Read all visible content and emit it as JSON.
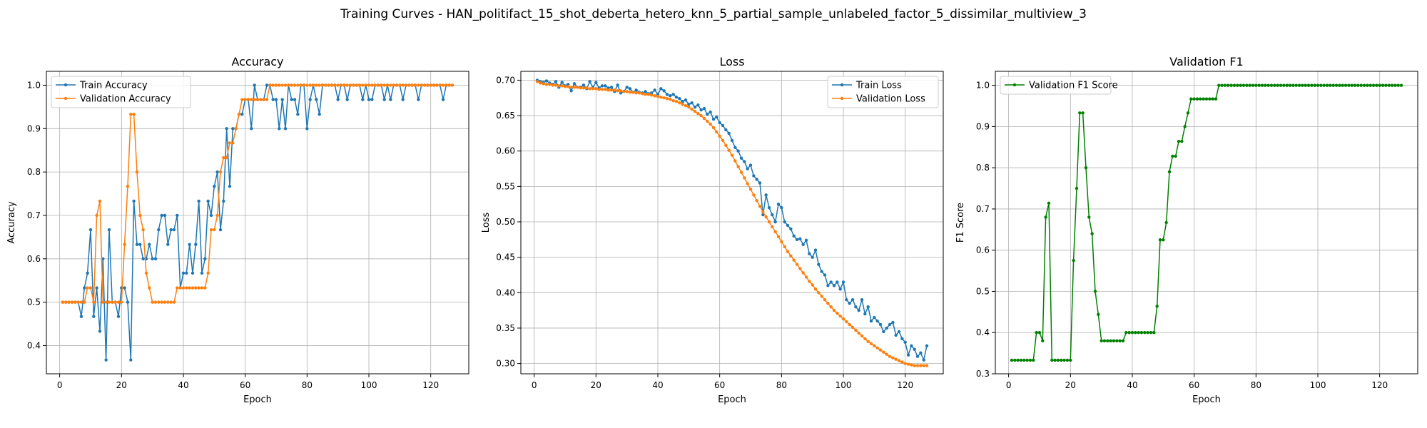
{
  "figure": {
    "suptitle": "Training Curves - HAN_politifact_15_shot_deberta_hetero_knn_5_partial_sample_unlabeled_factor_5_dissimilar_multiview_3"
  },
  "colors": {
    "train": "#1f77b4",
    "validation": "#ff7f0e",
    "f1": "#008000",
    "grid": "#b0b0b0",
    "axis": "#000000"
  },
  "chart_data": [
    {
      "type": "line",
      "title": "Accuracy",
      "xlabel": "Epoch",
      "ylabel": "Accuracy",
      "xlim": [
        -4.3,
        132.3
      ],
      "ylim": [
        0.335,
        1.032
      ],
      "xticks": [
        0,
        20,
        40,
        60,
        80,
        100,
        120
      ],
      "yticks": [
        0.4,
        0.5,
        0.6,
        0.7,
        0.8,
        0.9,
        1.0
      ],
      "ytick_labels": [
        "0.4",
        "0.5",
        "0.6",
        "0.7",
        "0.8",
        "0.9",
        "1.0"
      ],
      "grid": true,
      "legend_position": "upper-left",
      "x": [
        1,
        2,
        3,
        4,
        5,
        6,
        7,
        8,
        9,
        10,
        11,
        12,
        13,
        14,
        15,
        16,
        17,
        18,
        19,
        20,
        21,
        22,
        23,
        24,
        25,
        26,
        27,
        28,
        29,
        30,
        31,
        32,
        33,
        34,
        35,
        36,
        37,
        38,
        39,
        40,
        41,
        42,
        43,
        44,
        45,
        46,
        47,
        48,
        49,
        50,
        51,
        52,
        53,
        54,
        55,
        56,
        57,
        58,
        59,
        60,
        61,
        62,
        63,
        64,
        65,
        66,
        67,
        68,
        69,
        70,
        71,
        72,
        73,
        74,
        75,
        76,
        77,
        78,
        79,
        80,
        81,
        82,
        83,
        84,
        85,
        86,
        87,
        88,
        89,
        90,
        91,
        92,
        93,
        94,
        95,
        96,
        97,
        98,
        99,
        100,
        101,
        102,
        103,
        104,
        105,
        106,
        107,
        108,
        109,
        110,
        111,
        112,
        113,
        114,
        115,
        116,
        117,
        118,
        119,
        120,
        121,
        122,
        123,
        124,
        125,
        126,
        127
      ],
      "series": [
        {
          "name": "Train Accuracy",
          "color_key": "train",
          "values": [
            0.5,
            0.5,
            0.5,
            0.5,
            0.5,
            0.5,
            0.467,
            0.533,
            0.567,
            0.667,
            0.467,
            0.533,
            0.433,
            0.6,
            0.367,
            0.667,
            0.5,
            0.5,
            0.467,
            0.533,
            0.533,
            0.5,
            0.367,
            0.733,
            0.633,
            0.633,
            0.6,
            0.6,
            0.633,
            0.6,
            0.6,
            0.667,
            0.7,
            0.7,
            0.633,
            0.667,
            0.667,
            0.7,
            0.533,
            0.567,
            0.567,
            0.633,
            0.567,
            0.633,
            0.733,
            0.567,
            0.6,
            0.733,
            0.7,
            0.767,
            0.8,
            0.667,
            0.733,
            0.9,
            0.767,
            0.9,
            0.9,
            0.933,
            0.933,
            0.967,
            0.967,
            0.9,
            1.0,
            0.967,
            0.967,
            0.967,
            1.0,
            1.0,
            0.967,
            0.967,
            0.9,
            0.967,
            0.9,
            1.0,
            0.967,
            0.967,
            0.933,
            1.0,
            1.0,
            0.9,
            0.967,
            1.0,
            0.967,
            0.933,
            1.0,
            1.0,
            1.0,
            1.0,
            1.0,
            0.967,
            1.0,
            1.0,
            0.967,
            1.0,
            1.0,
            1.0,
            1.0,
            0.967,
            1.0,
            0.967,
            0.967,
            1.0,
            1.0,
            1.0,
            0.967,
            1.0,
            0.967,
            1.0,
            1.0,
            1.0,
            0.967,
            1.0,
            1.0,
            1.0,
            1.0,
            0.967,
            1.0,
            1.0,
            1.0,
            1.0,
            1.0,
            1.0,
            1.0,
            0.967,
            1.0,
            1.0,
            1.0
          ]
        },
        {
          "name": "Validation Accuracy",
          "color_key": "validation",
          "values": [
            0.5,
            0.5,
            0.5,
            0.5,
            0.5,
            0.5,
            0.5,
            0.5,
            0.533,
            0.533,
            0.5,
            0.7,
            0.733,
            0.5,
            0.5,
            0.5,
            0.5,
            0.5,
            0.5,
            0.5,
            0.633,
            0.767,
            0.933,
            0.933,
            0.8,
            0.7,
            0.667,
            0.567,
            0.533,
            0.5,
            0.5,
            0.5,
            0.5,
            0.5,
            0.5,
            0.5,
            0.5,
            0.533,
            0.533,
            0.533,
            0.533,
            0.533,
            0.533,
            0.533,
            0.533,
            0.533,
            0.533,
            0.567,
            0.667,
            0.667,
            0.7,
            0.8,
            0.833,
            0.833,
            0.867,
            0.867,
            0.9,
            0.933,
            0.967,
            0.967,
            0.967,
            0.967,
            0.967,
            0.967,
            0.967,
            0.967,
            0.967,
            1.0,
            1.0,
            1.0,
            1.0,
            1.0,
            1.0,
            1.0,
            1.0,
            1.0,
            1.0,
            1.0,
            1.0,
            1.0,
            1.0,
            1.0,
            1.0,
            1.0,
            1.0,
            1.0,
            1.0,
            1.0,
            1.0,
            1.0,
            1.0,
            1.0,
            1.0,
            1.0,
            1.0,
            1.0,
            1.0,
            1.0,
            1.0,
            1.0,
            1.0,
            1.0,
            1.0,
            1.0,
            1.0,
            1.0,
            1.0,
            1.0,
            1.0,
            1.0,
            1.0,
            1.0,
            1.0,
            1.0,
            1.0,
            1.0,
            1.0,
            1.0,
            1.0,
            1.0,
            1.0,
            1.0,
            1.0,
            1.0,
            1.0,
            1.0,
            1.0
          ]
        }
      ]
    },
    {
      "type": "line",
      "title": "Loss",
      "xlabel": "Epoch",
      "ylabel": "Loss",
      "xlim": [
        -4.3,
        132.3
      ],
      "ylim": [
        0.2855,
        0.7125
      ],
      "xticks": [
        0,
        20,
        40,
        60,
        80,
        100,
        120
      ],
      "yticks": [
        0.3,
        0.35,
        0.4,
        0.45,
        0.5,
        0.55,
        0.6,
        0.65,
        0.7
      ],
      "ytick_labels": [
        "0.30",
        "0.35",
        "0.40",
        "0.45",
        "0.50",
        "0.55",
        "0.60",
        "0.65",
        "0.70"
      ],
      "grid": true,
      "legend_position": "upper-right",
      "x": [
        1,
        2,
        3,
        4,
        5,
        6,
        7,
        8,
        9,
        10,
        11,
        12,
        13,
        14,
        15,
        16,
        17,
        18,
        19,
        20,
        21,
        22,
        23,
        24,
        25,
        26,
        27,
        28,
        29,
        30,
        31,
        32,
        33,
        34,
        35,
        36,
        37,
        38,
        39,
        40,
        41,
        42,
        43,
        44,
        45,
        46,
        47,
        48,
        49,
        50,
        51,
        52,
        53,
        54,
        55,
        56,
        57,
        58,
        59,
        60,
        61,
        62,
        63,
        64,
        65,
        66,
        67,
        68,
        69,
        70,
        71,
        72,
        73,
        74,
        75,
        76,
        77,
        78,
        79,
        80,
        81,
        82,
        83,
        84,
        85,
        86,
        87,
        88,
        89,
        90,
        91,
        92,
        93,
        94,
        95,
        96,
        97,
        98,
        99,
        100,
        101,
        102,
        103,
        104,
        105,
        106,
        107,
        108,
        109,
        110,
        111,
        112,
        113,
        114,
        115,
        116,
        117,
        118,
        119,
        120,
        121,
        122,
        123,
        124,
        125,
        126,
        127
      ],
      "series": [
        {
          "name": "Train Loss",
          "color_key": "train",
          "values": [
            0.7,
            0.698,
            0.697,
            0.699,
            0.696,
            0.694,
            0.698,
            0.69,
            0.697,
            0.692,
            0.694,
            0.685,
            0.695,
            0.69,
            0.69,
            0.693,
            0.688,
            0.698,
            0.69,
            0.697,
            0.689,
            0.692,
            0.692,
            0.689,
            0.69,
            0.684,
            0.693,
            0.682,
            0.684,
            0.69,
            0.688,
            0.683,
            0.686,
            0.683,
            0.682,
            0.684,
            0.681,
            0.682,
            0.686,
            0.68,
            0.688,
            0.685,
            0.68,
            0.678,
            0.68,
            0.676,
            0.674,
            0.67,
            0.672,
            0.666,
            0.668,
            0.662,
            0.665,
            0.658,
            0.66,
            0.652,
            0.655,
            0.645,
            0.648,
            0.64,
            0.636,
            0.63,
            0.625,
            0.615,
            0.605,
            0.6,
            0.59,
            0.585,
            0.575,
            0.58,
            0.565,
            0.56,
            0.555,
            0.51,
            0.538,
            0.52,
            0.51,
            0.5,
            0.525,
            0.52,
            0.5,
            0.495,
            0.49,
            0.48,
            0.475,
            0.476,
            0.468,
            0.474,
            0.455,
            0.45,
            0.46,
            0.44,
            0.43,
            0.425,
            0.41,
            0.415,
            0.41,
            0.415,
            0.405,
            0.415,
            0.39,
            0.385,
            0.39,
            0.38,
            0.375,
            0.39,
            0.37,
            0.38,
            0.36,
            0.365,
            0.36,
            0.355,
            0.345,
            0.35,
            0.355,
            0.358,
            0.34,
            0.345,
            0.335,
            0.33,
            0.312,
            0.325,
            0.32,
            0.31,
            0.315,
            0.305,
            0.325
          ]
        },
        {
          "name": "Validation Loss",
          "color_key": "validation",
          "values": [
            0.698,
            0.696,
            0.695,
            0.694,
            0.694,
            0.693,
            0.693,
            0.692,
            0.692,
            0.691,
            0.691,
            0.69,
            0.69,
            0.69,
            0.689,
            0.689,
            0.689,
            0.688,
            0.688,
            0.688,
            0.687,
            0.687,
            0.687,
            0.686,
            0.686,
            0.686,
            0.685,
            0.685,
            0.684,
            0.684,
            0.683,
            0.683,
            0.682,
            0.682,
            0.681,
            0.68,
            0.68,
            0.679,
            0.678,
            0.677,
            0.676,
            0.675,
            0.674,
            0.673,
            0.671,
            0.67,
            0.668,
            0.666,
            0.664,
            0.662,
            0.659,
            0.656,
            0.653,
            0.65,
            0.646,
            0.642,
            0.638,
            0.633,
            0.627,
            0.621,
            0.615,
            0.608,
            0.601,
            0.594,
            0.586,
            0.578,
            0.57,
            0.562,
            0.554,
            0.546,
            0.538,
            0.53,
            0.522,
            0.514,
            0.507,
            0.5,
            0.493,
            0.486,
            0.479,
            0.472,
            0.465,
            0.458,
            0.452,
            0.446,
            0.44,
            0.434,
            0.428,
            0.422,
            0.416,
            0.411,
            0.405,
            0.4,
            0.395,
            0.39,
            0.385,
            0.38,
            0.375,
            0.371,
            0.367,
            0.363,
            0.359,
            0.355,
            0.351,
            0.347,
            0.343,
            0.339,
            0.335,
            0.331,
            0.328,
            0.325,
            0.322,
            0.319,
            0.316,
            0.313,
            0.31,
            0.308,
            0.306,
            0.304,
            0.302,
            0.3,
            0.299,
            0.298,
            0.297,
            0.297,
            0.297,
            0.297,
            0.297
          ]
        }
      ]
    },
    {
      "type": "line",
      "title": "Validation F1",
      "xlabel": "Epoch",
      "ylabel": "F1 Score",
      "xlim": [
        -4.3,
        132.3
      ],
      "ylim": [
        0.3,
        1.034
      ],
      "xticks": [
        0,
        20,
        40,
        60,
        80,
        100,
        120
      ],
      "yticks": [
        0.3,
        0.4,
        0.5,
        0.6,
        0.7,
        0.8,
        0.9,
        1.0
      ],
      "ytick_labels": [
        "0.3",
        "0.4",
        "0.5",
        "0.6",
        "0.7",
        "0.8",
        "0.9",
        "1.0"
      ],
      "grid": true,
      "legend_position": "upper-left",
      "x": [
        1,
        2,
        3,
        4,
        5,
        6,
        7,
        8,
        9,
        10,
        11,
        12,
        13,
        14,
        15,
        16,
        17,
        18,
        19,
        20,
        21,
        22,
        23,
        24,
        25,
        26,
        27,
        28,
        29,
        30,
        31,
        32,
        33,
        34,
        35,
        36,
        37,
        38,
        39,
        40,
        41,
        42,
        43,
        44,
        45,
        46,
        47,
        48,
        49,
        50,
        51,
        52,
        53,
        54,
        55,
        56,
        57,
        58,
        59,
        60,
        61,
        62,
        63,
        64,
        65,
        66,
        67,
        68,
        69,
        70,
        71,
        72,
        73,
        74,
        75,
        76,
        77,
        78,
        79,
        80,
        81,
        82,
        83,
        84,
        85,
        86,
        87,
        88,
        89,
        90,
        91,
        92,
        93,
        94,
        95,
        96,
        97,
        98,
        99,
        100,
        101,
        102,
        103,
        104,
        105,
        106,
        107,
        108,
        109,
        110,
        111,
        112,
        113,
        114,
        115,
        116,
        117,
        118,
        119,
        120,
        121,
        122,
        123,
        124,
        125,
        126,
        127
      ],
      "series": [
        {
          "name": "Validation F1 Score",
          "color_key": "f1",
          "values": [
            0.333,
            0.333,
            0.333,
            0.333,
            0.333,
            0.333,
            0.333,
            0.333,
            0.4,
            0.4,
            0.38,
            0.68,
            0.714,
            0.333,
            0.333,
            0.333,
            0.333,
            0.333,
            0.333,
            0.333,
            0.575,
            0.75,
            0.933,
            0.933,
            0.8,
            0.68,
            0.64,
            0.5,
            0.444,
            0.38,
            0.38,
            0.38,
            0.38,
            0.38,
            0.38,
            0.38,
            0.38,
            0.4,
            0.4,
            0.4,
            0.4,
            0.4,
            0.4,
            0.4,
            0.4,
            0.4,
            0.4,
            0.464,
            0.625,
            0.625,
            0.667,
            0.79,
            0.828,
            0.828,
            0.864,
            0.864,
            0.9,
            0.933,
            0.967,
            0.967,
            0.967,
            0.967,
            0.967,
            0.967,
            0.967,
            0.967,
            0.967,
            1.0,
            1.0,
            1.0,
            1.0,
            1.0,
            1.0,
            1.0,
            1.0,
            1.0,
            1.0,
            1.0,
            1.0,
            1.0,
            1.0,
            1.0,
            1.0,
            1.0,
            1.0,
            1.0,
            1.0,
            1.0,
            1.0,
            1.0,
            1.0,
            1.0,
            1.0,
            1.0,
            1.0,
            1.0,
            1.0,
            1.0,
            1.0,
            1.0,
            1.0,
            1.0,
            1.0,
            1.0,
            1.0,
            1.0,
            1.0,
            1.0,
            1.0,
            1.0,
            1.0,
            1.0,
            1.0,
            1.0,
            1.0,
            1.0,
            1.0,
            1.0,
            1.0,
            1.0,
            1.0,
            1.0,
            1.0,
            1.0,
            1.0,
            1.0,
            1.0
          ]
        }
      ]
    }
  ]
}
